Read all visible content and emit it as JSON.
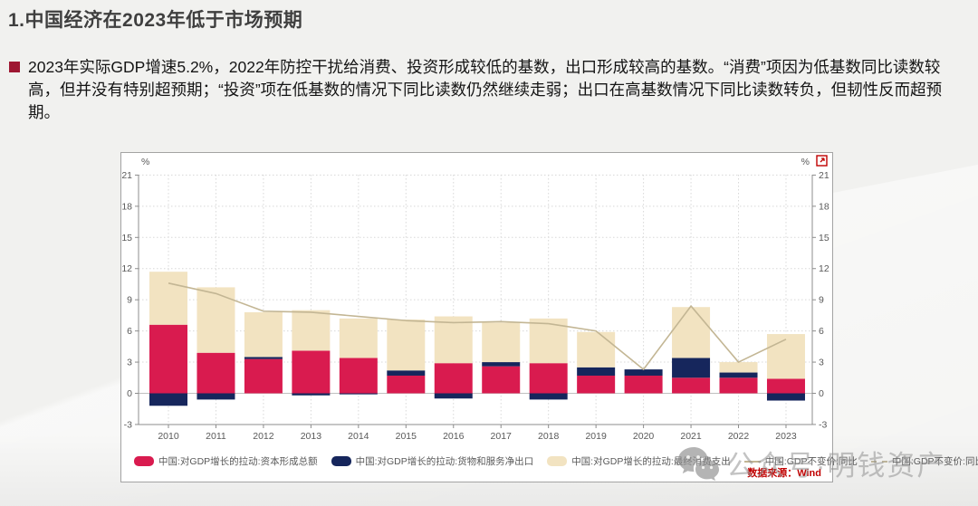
{
  "slide": {
    "title": "1.中国经济在2023年低于市场预期",
    "bullet_text": "2023年实际GDP增速5.2%，2022年防控干扰给消费、投资形成较低的基数，出口形成较高的基数。“消费”项因为低基数同比读数较高，但并没有特别超预期；“投资”项在低基数的情况下同比读数仍然继续走弱；出口在高基数情况下同比读数转负，但韧性反而超预期。"
  },
  "chart_data": {
    "type": "bar",
    "subtype": "stacked-bar-with-line",
    "categories": [
      "2010",
      "2011",
      "2012",
      "2013",
      "2014",
      "2015",
      "2016",
      "2017",
      "2018",
      "2019",
      "2020",
      "2021",
      "2022",
      "2023"
    ],
    "series": [
      {
        "name": "中国:对GDP增长的拉动:资本形成总额",
        "type": "bar",
        "color": "#d91b4f",
        "values": [
          6.6,
          3.9,
          3.3,
          4.1,
          3.4,
          1.7,
          2.9,
          2.6,
          2.9,
          1.7,
          1.7,
          1.5,
          1.5,
          1.4
        ]
      },
      {
        "name": "中国:对GDP增长的拉动:货物和服务净出口",
        "type": "bar",
        "color": "#16265c",
        "values": [
          -1.2,
          -0.6,
          0.2,
          -0.2,
          -0.1,
          0.5,
          -0.5,
          0.4,
          -0.6,
          0.8,
          0.6,
          1.9,
          0.5,
          -0.7
        ]
      },
      {
        "name": "中国:对GDP增长的拉动:最终消费支出",
        "type": "bar",
        "color": "#f2e3c1",
        "values": [
          5.1,
          6.3,
          4.3,
          3.9,
          3.8,
          4.9,
          4.5,
          3.8,
          4.3,
          3.4,
          0.0,
          4.9,
          1.0,
          4.3
        ]
      },
      {
        "name": "中国:GDP不变价:同比",
        "type": "line",
        "color": "#c3b694",
        "values": [
          10.6,
          9.6,
          7.9,
          7.8,
          7.4,
          7.0,
          6.8,
          6.9,
          6.7,
          6.0,
          2.3,
          8.4,
          3.0,
          5.2
        ]
      },
      {
        "name": "中国:GDP不变价:同比",
        "type": "line",
        "style": "dashed",
        "legend_only": true,
        "color": "#bdb49a",
        "values": [
          10.6,
          9.6,
          7.9,
          7.8,
          7.4,
          7.0,
          6.8,
          6.9,
          6.7,
          6.0,
          2.3,
          8.4,
          3.0,
          5.2
        ]
      }
    ],
    "ylabel_left": "%",
    "ylabel_right": "%",
    "ylim": [
      -3,
      21
    ],
    "yticks": [
      21,
      18,
      15,
      12,
      9,
      6,
      3,
      0,
      -3
    ],
    "grid": "dotted",
    "legend_position": "bottom",
    "source": "数据来源：Wind"
  },
  "watermark": {
    "text": "公众号·明钱资产",
    "icon": "wechat-icon"
  },
  "colors": {
    "title": "#3f3f3f",
    "bullet": "#9e1732",
    "source_red": "#c00000",
    "axis_text": "#595959",
    "grid": "#d8d8d8",
    "expand_icon": "#c00000"
  }
}
